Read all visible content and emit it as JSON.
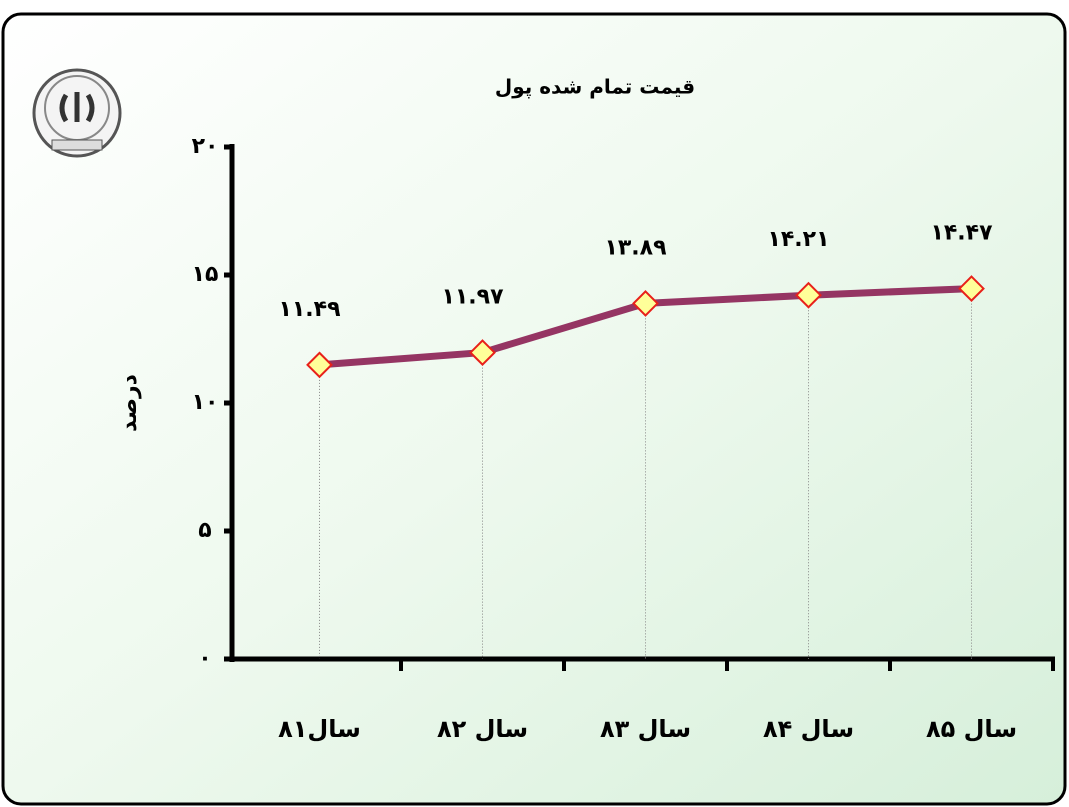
{
  "chart_data": {
    "type": "line",
    "title": "قیمت تمام شده پول",
    "y_label": "درصد",
    "categories": [
      "سال۸۱",
      "سال ۸۲",
      "سال ۸۳",
      "سال ۸۴",
      "سال ۸۵"
    ],
    "series": [
      {
        "name": "قیمت تمام شده پول",
        "color": "#953563",
        "values": [
          11.49,
          11.97,
          13.89,
          14.21,
          14.47
        ],
        "value_labels": [
          "۱۱.۴۹",
          "۱۱.۹۷",
          "۱۳.۸۹",
          "۱۴.۲۱",
          "۱۴.۴۷"
        ]
      }
    ],
    "ylim": [
      0,
      20
    ],
    "yticks": [
      {
        "value": 0,
        "label": "۰"
      },
      {
        "value": 5,
        "label": "۵"
      },
      {
        "value": 10,
        "label": "۱۰"
      },
      {
        "value": 15,
        "label": "۱۵"
      },
      {
        "value": 20,
        "label": "۲۰"
      }
    ],
    "marker_fill": "#ffff99",
    "marker_stroke": "#e8201a"
  }
}
